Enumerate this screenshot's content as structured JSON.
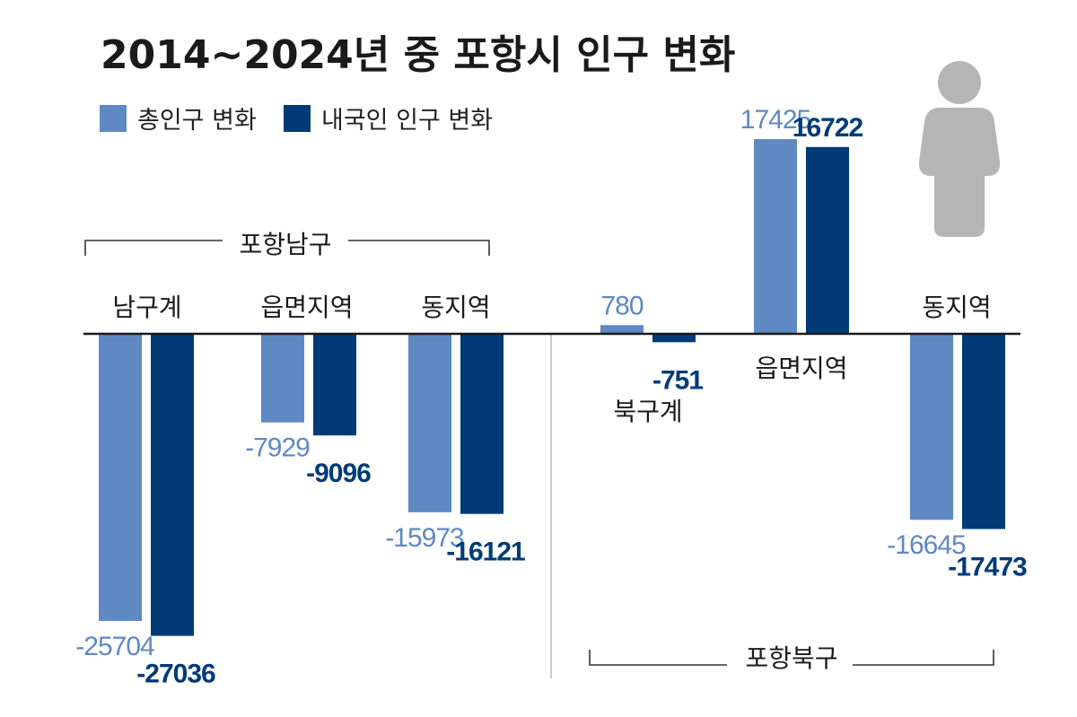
{
  "chart_data": {
    "type": "bar",
    "title": "2014~2024년 중 포항시 인구 변화",
    "legend": {
      "position": "top-left",
      "entries": [
        {
          "name": "총인구 변화",
          "color": "#5f89c3"
        },
        {
          "name": "내국인 인구 변화",
          "color": "#003b78"
        }
      ]
    },
    "groups": [
      {
        "name": "포항남구",
        "categories": [
          "남구계",
          "읍면지역",
          "동지역"
        ]
      },
      {
        "name": "포항북구",
        "categories": [
          "북구계",
          "읍면지역",
          "동지역"
        ]
      }
    ],
    "categories": [
      "남구계",
      "읍면지역",
      "동지역",
      "북구계",
      "읍면지역",
      "동지역"
    ],
    "series": [
      {
        "name": "총인구 변화",
        "color": "#5f89c3",
        "values": [
          -25704,
          -7929,
          -15973,
          780,
          17425,
          -16645
        ]
      },
      {
        "name": "내국인 인구 변화",
        "color": "#003b78",
        "values": [
          -27036,
          -9096,
          -16121,
          -751,
          16722,
          -17473
        ]
      }
    ],
    "ylim": [
      -28000,
      18000
    ],
    "grid": false,
    "icon": "person-silhouette-icon",
    "colors": {
      "axis": "#1a1a1a",
      "divider": "#bbbbbb",
      "icon": "#b5b5b5"
    }
  }
}
